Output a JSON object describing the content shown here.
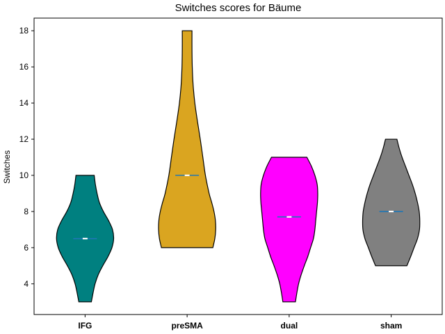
{
  "chart_data": {
    "type": "violin",
    "title": "Switches scores for Bäume",
    "xlabel": "",
    "ylabel": "Switches",
    "ylim": [
      2.3,
      18.7
    ],
    "yticks": [
      4,
      6,
      8,
      10,
      12,
      14,
      16,
      18
    ],
    "categories": [
      "IFG",
      "preSMA",
      "dual",
      "sham"
    ],
    "series": [
      {
        "category": "IFG",
        "color": "#008080",
        "min": 3,
        "max": 10,
        "median": 6.5,
        "mean": 6.5,
        "profile": [
          [
            3,
            0.22
          ],
          [
            3.5,
            0.28
          ],
          [
            4,
            0.35
          ],
          [
            4.5,
            0.46
          ],
          [
            5,
            0.62
          ],
          [
            5.5,
            0.8
          ],
          [
            6,
            0.94
          ],
          [
            6.5,
            1.0
          ],
          [
            7,
            0.96
          ],
          [
            7.5,
            0.82
          ],
          [
            8,
            0.64
          ],
          [
            8.5,
            0.5
          ],
          [
            9,
            0.42
          ],
          [
            9.5,
            0.36
          ],
          [
            10,
            0.32
          ]
        ]
      },
      {
        "category": "preSMA",
        "color": "#DAA520",
        "min": 6,
        "max": 18,
        "median": 10,
        "mean": 10,
        "profile": [
          [
            6,
            0.9
          ],
          [
            6.5,
            0.97
          ],
          [
            7,
            1.0
          ],
          [
            7.5,
            0.99
          ],
          [
            8,
            0.94
          ],
          [
            8.5,
            0.86
          ],
          [
            9,
            0.77
          ],
          [
            10,
            0.64
          ],
          [
            11,
            0.55
          ],
          [
            12,
            0.46
          ],
          [
            13,
            0.36
          ],
          [
            14,
            0.27
          ],
          [
            15,
            0.21
          ],
          [
            16,
            0.18
          ],
          [
            17,
            0.17
          ],
          [
            18,
            0.17
          ]
        ]
      },
      {
        "category": "dual",
        "color": "#FF00FF",
        "min": 3,
        "max": 11,
        "median": 7.7,
        "mean": 7.7,
        "profile": [
          [
            3,
            0.22
          ],
          [
            3.5,
            0.27
          ],
          [
            4,
            0.33
          ],
          [
            4.5,
            0.42
          ],
          [
            5,
            0.53
          ],
          [
            5.5,
            0.65
          ],
          [
            6,
            0.75
          ],
          [
            6.5,
            0.85
          ],
          [
            7,
            0.9
          ],
          [
            7.5,
            0.93
          ],
          [
            8,
            0.96
          ],
          [
            8.5,
            0.99
          ],
          [
            9,
            1.0
          ],
          [
            9.5,
            0.98
          ],
          [
            10,
            0.9
          ],
          [
            10.5,
            0.78
          ],
          [
            11,
            0.62
          ]
        ]
      },
      {
        "category": "sham",
        "color": "#808080",
        "min": 5,
        "max": 12,
        "median": 8,
        "mean": 8,
        "profile": [
          [
            5,
            0.55
          ],
          [
            5.5,
            0.68
          ],
          [
            6,
            0.8
          ],
          [
            6.5,
            0.92
          ],
          [
            7,
            0.99
          ],
          [
            7.5,
            1.0
          ],
          [
            8,
            0.98
          ],
          [
            8.5,
            0.92
          ],
          [
            9,
            0.84
          ],
          [
            9.5,
            0.74
          ],
          [
            10,
            0.62
          ],
          [
            10.5,
            0.5
          ],
          [
            11,
            0.38
          ],
          [
            11.5,
            0.28
          ],
          [
            12,
            0.2
          ]
        ]
      }
    ],
    "median_color": "#ffffff",
    "mean_color": "#1f77b4",
    "grid": false
  }
}
